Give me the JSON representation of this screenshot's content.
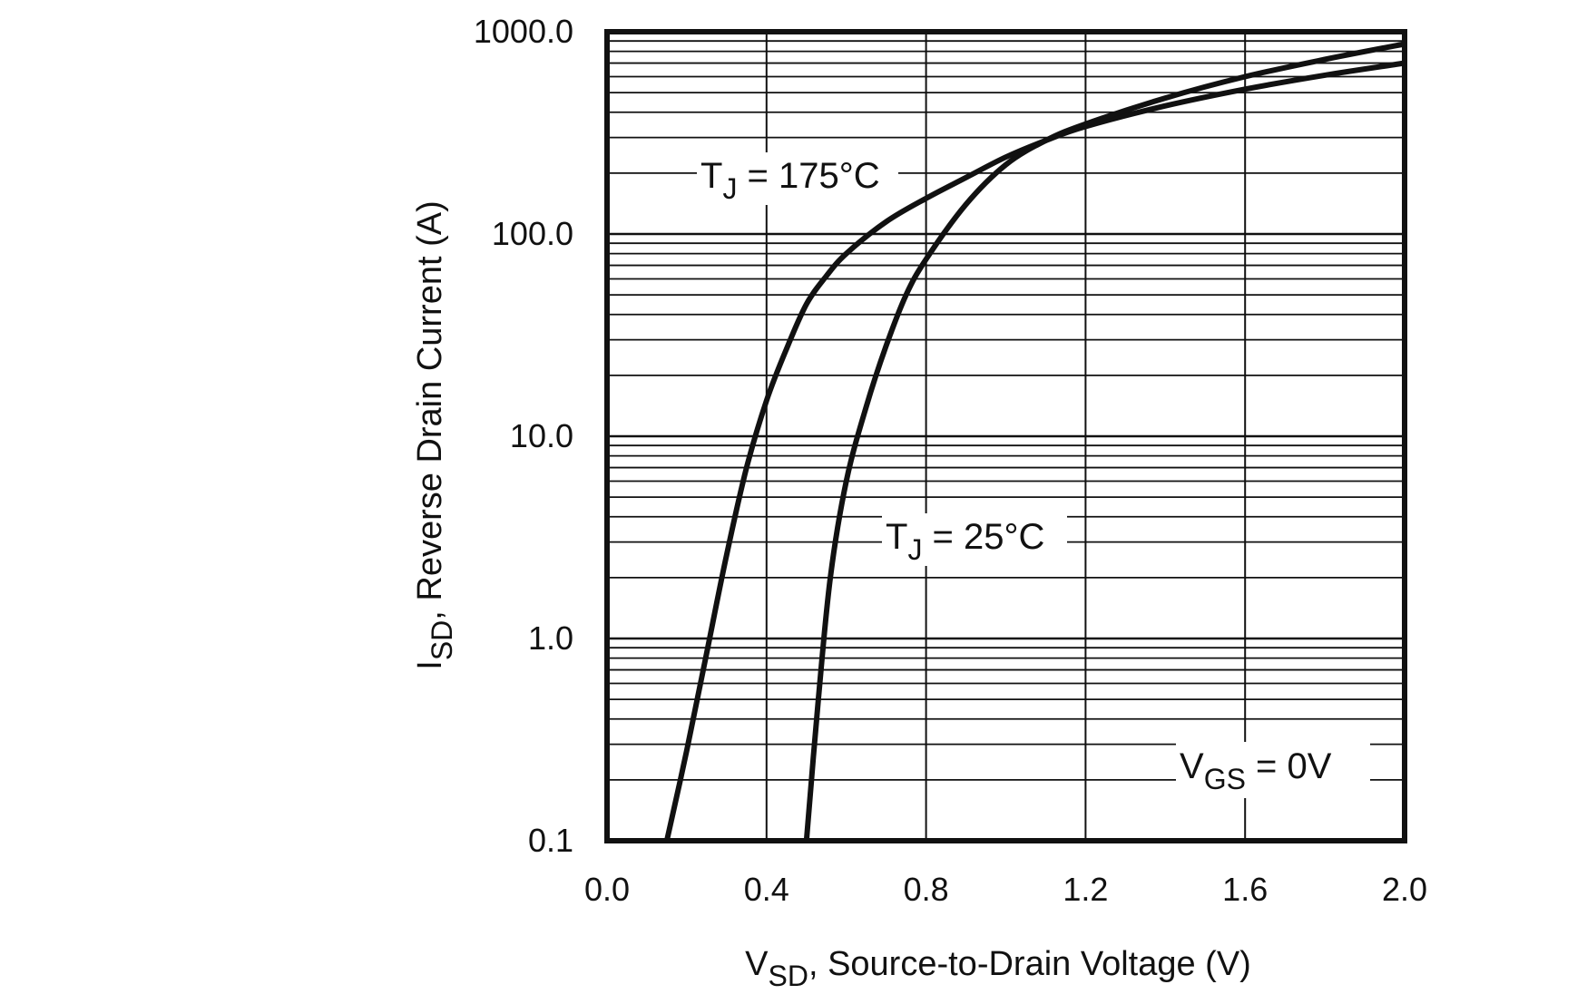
{
  "chart_data": {
    "type": "line",
    "title": "",
    "xlabel": {
      "main": "V",
      "sub": "SD",
      "rest": ", Source-to-Drain Voltage (V)"
    },
    "ylabel": {
      "main": "I",
      "sub": "SD",
      "rest": ", Reverse Drain Current (A)"
    },
    "xlim": [
      0.0,
      2.0
    ],
    "ylim": [
      0.1,
      1000.0
    ],
    "yscale": "log",
    "grid": true,
    "x_ticks": [
      0.0,
      0.4,
      0.8,
      1.2,
      1.6,
      2.0
    ],
    "x_tick_labels": [
      "0.0",
      "0.4",
      "0.8",
      "1.2",
      "1.6",
      "2.0"
    ],
    "y_ticks": [
      0.1,
      1.0,
      10.0,
      100.0,
      1000.0
    ],
    "y_tick_labels": [
      "0.1",
      "1.0",
      "10.0",
      "100.0",
      "1000.0"
    ],
    "series": [
      {
        "label_main": "T",
        "label_sub": "J",
        "label_rest": " = 175°C",
        "x": [
          0.15,
          0.2,
          0.25,
          0.3,
          0.35,
          0.4,
          0.45,
          0.5,
          0.55,
          0.6,
          0.7,
          0.8,
          0.9,
          1.0,
          1.1,
          1.2,
          1.4,
          1.6,
          1.8,
          2.0
        ],
        "y": [
          0.1,
          0.28,
          0.85,
          2.6,
          7.0,
          15.0,
          27.0,
          45.0,
          62.0,
          80.0,
          115.0,
          150.0,
          190.0,
          240.0,
          290.0,
          340.0,
          430.0,
          520.0,
          610.0,
          700.0
        ]
      },
      {
        "label_main": "T",
        "label_sub": "J",
        "label_rest": " = 25°C",
        "x": [
          0.5,
          0.53,
          0.56,
          0.6,
          0.65,
          0.7,
          0.75,
          0.8,
          0.9,
          1.0,
          1.1,
          1.2,
          1.4,
          1.6,
          1.8,
          2.0
        ],
        "y": [
          0.1,
          0.5,
          2.0,
          6.0,
          14.0,
          28.0,
          50.0,
          75.0,
          140.0,
          220.0,
          290.0,
          350.0,
          470.0,
          600.0,
          730.0,
          870.0
        ]
      }
    ],
    "annotation": {
      "main": "V",
      "sub": "GS",
      "rest": " = 0V"
    }
  }
}
